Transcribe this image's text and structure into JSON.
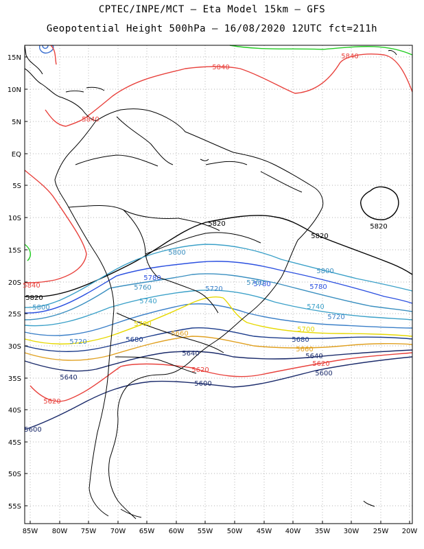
{
  "header": {
    "line1": "CPTEC/INPE/MCT –  Eta Model 15km – GFS",
    "line2": "Geopotential Height 500hPa – 16/08/2020 12UTC fct=211h"
  },
  "axes": {
    "lat_labels": [
      "15N",
      "10N",
      "5N",
      "EQ",
      "5S",
      "10S",
      "15S",
      "20S",
      "25S",
      "30S",
      "35S",
      "40S",
      "45S",
      "50S",
      "55S"
    ],
    "lon_labels": [
      "85W",
      "80W",
      "75W",
      "70W",
      "65W",
      "60W",
      "55W",
      "50W",
      "45W",
      "40W",
      "35W",
      "30W",
      "25W",
      "20W"
    ],
    "grid": "dotted"
  },
  "contour_labels": [
    {
      "id": "5840-top",
      "text": "5840",
      "color": "#e8413c"
    },
    {
      "id": "5840-carib",
      "text": "5840",
      "color": "#e8413c"
    },
    {
      "id": "5840-ne",
      "text": "5840",
      "color": "#e8413c"
    },
    {
      "id": "5840-w",
      "text": "5840",
      "color": "#e8413c"
    },
    {
      "id": "5820-w",
      "text": "5820",
      "color": "#000000"
    },
    {
      "id": "5820-c",
      "text": "5820",
      "color": "#000000"
    },
    {
      "id": "5820-e",
      "text": "5820",
      "color": "#000000"
    },
    {
      "id": "5820-atl",
      "text": "5820",
      "color": "#000000"
    },
    {
      "id": "5800-a",
      "text": "5800",
      "color": "#3a8fc0"
    },
    {
      "id": "5800-b",
      "text": "5800",
      "color": "#3a8fc0"
    },
    {
      "id": "5800-c",
      "text": "5800",
      "color": "#3a8fc0"
    },
    {
      "id": "5780-a",
      "text": "5780",
      "color": "#2a4fe0"
    },
    {
      "id": "5780-b",
      "text": "5780",
      "color": "#2a4fe0"
    },
    {
      "id": "5780-c",
      "text": "5780",
      "color": "#2a4fe0"
    },
    {
      "id": "5760-a",
      "text": "5760",
      "color": "#3a8fc0"
    },
    {
      "id": "5760-b",
      "text": "5760",
      "color": "#3a8fc0"
    },
    {
      "id": "5740-a",
      "text": "5740",
      "color": "#3aa0c8"
    },
    {
      "id": "5740-b",
      "text": "5740",
      "color": "#3aa0c8"
    },
    {
      "id": "5720-a",
      "text": "5720",
      "color": "#3a7fc8"
    },
    {
      "id": "5720-b",
      "text": "5720",
      "color": "#3a7fc8"
    },
    {
      "id": "5720-c",
      "text": "5720",
      "color": "#3a7fc8"
    },
    {
      "id": "5700-a",
      "text": "5700",
      "color": "#e6d800"
    },
    {
      "id": "5700-b",
      "text": "5700",
      "color": "#e6d800"
    },
    {
      "id": "5680-a",
      "text": "5680",
      "color": "#1a3a8a"
    },
    {
      "id": "5680-b",
      "text": "5680",
      "color": "#1a3a8a"
    },
    {
      "id": "5660-a",
      "text": "5660",
      "color": "#e0a020"
    },
    {
      "id": "5660-b",
      "text": "5660",
      "color": "#e0a020"
    },
    {
      "id": "5640-a",
      "text": "5640",
      "color": "#1a2a6a"
    },
    {
      "id": "5640-b",
      "text": "5640",
      "color": "#1a2a6a"
    },
    {
      "id": "5640-c",
      "text": "5640",
      "color": "#1a2a6a"
    },
    {
      "id": "5620-a",
      "text": "5620",
      "color": "#e8413c"
    },
    {
      "id": "5620-b",
      "text": "5620",
      "color": "#e8413c"
    },
    {
      "id": "5620-c",
      "text": "5620",
      "color": "#e8413c"
    },
    {
      "id": "5600-a",
      "text": "5600",
      "color": "#1a2a6a"
    },
    {
      "id": "5600-b",
      "text": "5600",
      "color": "#1a2a6a"
    },
    {
      "id": "5600-c",
      "text": "5600",
      "color": "#1a2a6a"
    }
  ],
  "colors": {
    "coast": "#000000",
    "grid": "#999999",
    "green_contour": "#22cc22",
    "low_center": "#3a6fd0"
  }
}
